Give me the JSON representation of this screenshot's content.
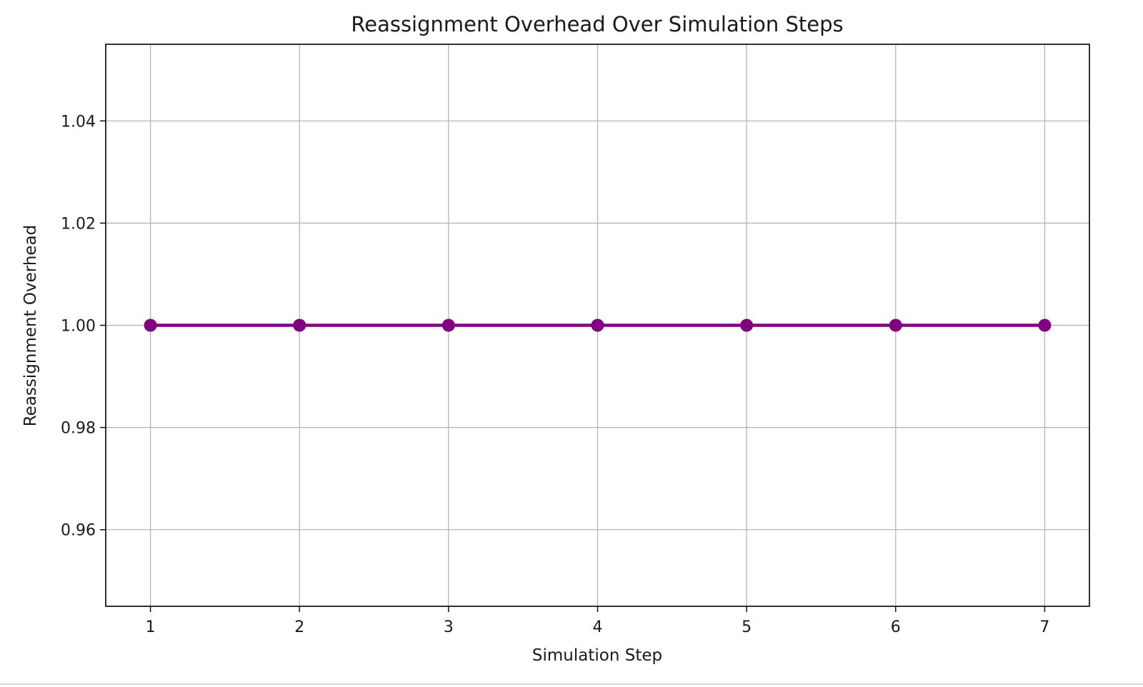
{
  "chart_data": {
    "type": "line",
    "title": "Reassignment Overhead Over Simulation Steps",
    "xlabel": "Simulation Step",
    "ylabel": "Reassignment Overhead",
    "x": [
      1,
      2,
      3,
      4,
      5,
      6,
      7
    ],
    "xticks": [
      "1",
      "2",
      "3",
      "4",
      "5",
      "6",
      "7"
    ],
    "yticks": [
      "0.96",
      "0.98",
      "1.00",
      "1.02",
      "1.04"
    ],
    "ytick_values": [
      0.96,
      0.98,
      1.0,
      1.02,
      1.04
    ],
    "xlim": [
      0.7,
      7.3
    ],
    "ylim": [
      0.945,
      1.055
    ],
    "grid": true,
    "series": [
      {
        "values": [
          1,
          1,
          1,
          1,
          1,
          1,
          1
        ],
        "color": "#800080",
        "marker": "circle"
      }
    ]
  }
}
